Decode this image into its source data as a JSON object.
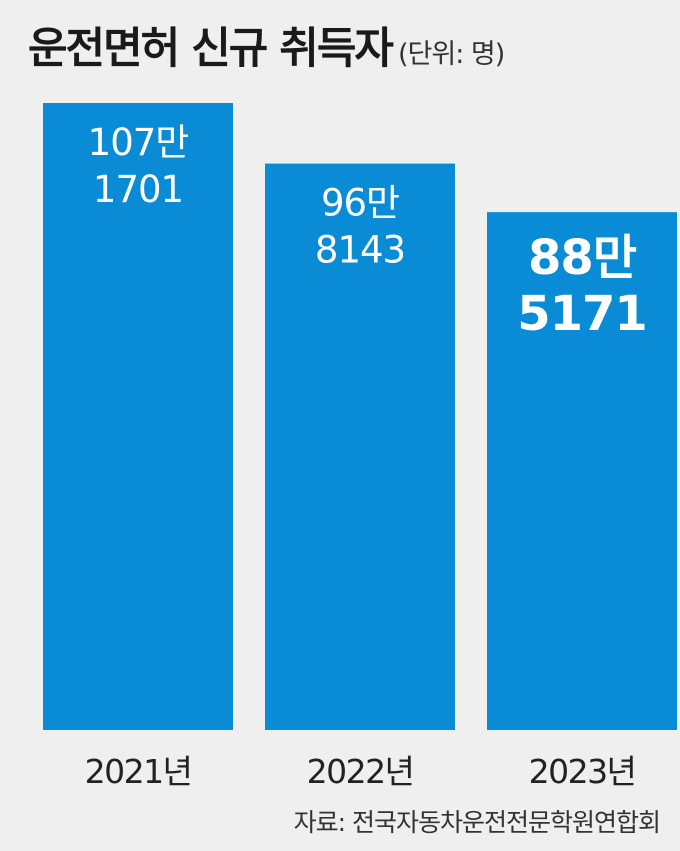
{
  "title": "운전면허 신규 취득자",
  "unit": "(단위: 명)",
  "source": "자료: 전국자동차운전전문학원연합회",
  "colors": {
    "bar": "#0a8bd6",
    "background": "#efefef"
  },
  "chart_data": {
    "type": "bar",
    "title": "운전면허 신규 취득자",
    "unit": "(단위: 명)",
    "categories": [
      "2021년",
      "2022년",
      "2023년"
    ],
    "values": [
      1071701,
      968143,
      885171
    ],
    "data_labels": [
      [
        "107만",
        "1701"
      ],
      [
        "96만",
        "8143"
      ],
      [
        "88만",
        "5171"
      ]
    ],
    "highlight_index": 2,
    "ylim": [
      0,
      1100000
    ],
    "grid": false,
    "legend": "none"
  }
}
